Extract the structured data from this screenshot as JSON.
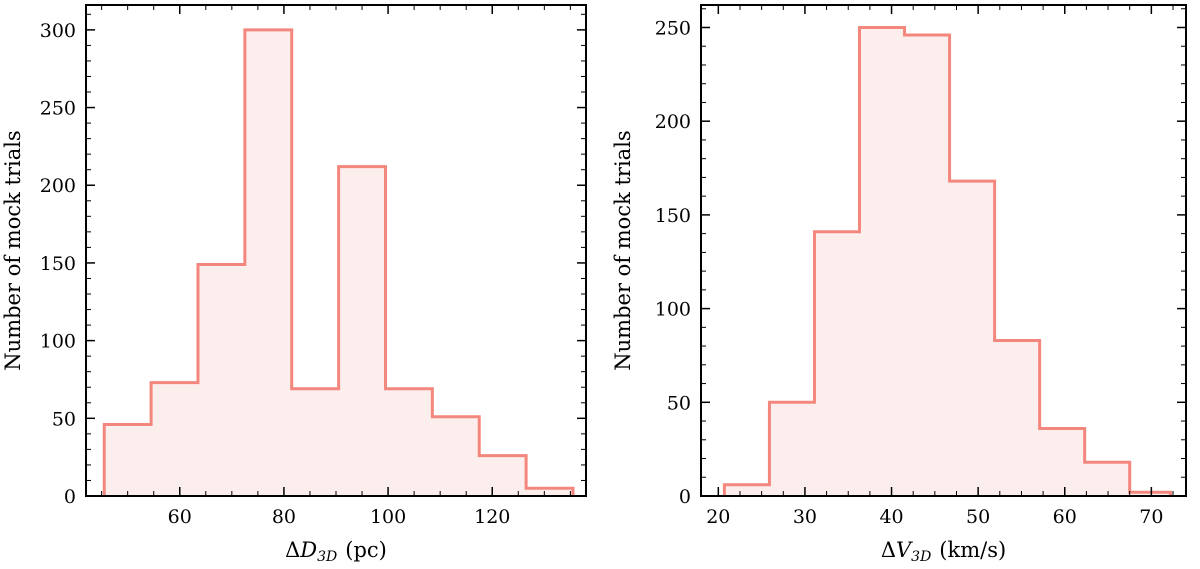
{
  "chart_data": [
    {
      "type": "histogram",
      "xlabel": {
        "prefix": "Δ",
        "symbol": "D",
        "subscript": "3D",
        "unit": "(pc)"
      },
      "ylabel": "Number of mock trials",
      "xlim": [
        42,
        138
      ],
      "ylim": [
        0,
        316
      ],
      "xticks": [
        60,
        80,
        100,
        120
      ],
      "yticks": [
        0,
        50,
        100,
        150,
        200,
        250,
        300
      ],
      "bin_edges": [
        45.5,
        54.5,
        63.5,
        72.5,
        81.5,
        90.5,
        99.5,
        108.5,
        117.5,
        126.5,
        135.5
      ],
      "counts": [
        46,
        73,
        149,
        300,
        69,
        212,
        69,
        51,
        26,
        5
      ],
      "line_color": "#f4877d",
      "fill_color": "#fdeeee",
      "grid": false
    },
    {
      "type": "histogram",
      "xlabel": {
        "prefix": "Δ",
        "symbol": "V",
        "subscript": "3D",
        "unit": "(km/s)"
      },
      "ylabel": "Number of mock trials",
      "xlim": [
        18,
        74
      ],
      "ylim": [
        0,
        262
      ],
      "xticks": [
        20,
        30,
        40,
        50,
        60,
        70
      ],
      "yticks": [
        0,
        50,
        100,
        150,
        200,
        250
      ],
      "bin_edges": [
        20.7,
        25.9,
        31.1,
        36.3,
        41.5,
        46.7,
        51.9,
        57.1,
        62.3,
        67.5,
        72.2
      ],
      "counts": [
        6,
        50,
        141,
        250,
        246,
        168,
        83,
        36,
        18,
        2
      ],
      "line_color": "#f4877d",
      "fill_color": "#fdeeee",
      "grid": false
    }
  ]
}
